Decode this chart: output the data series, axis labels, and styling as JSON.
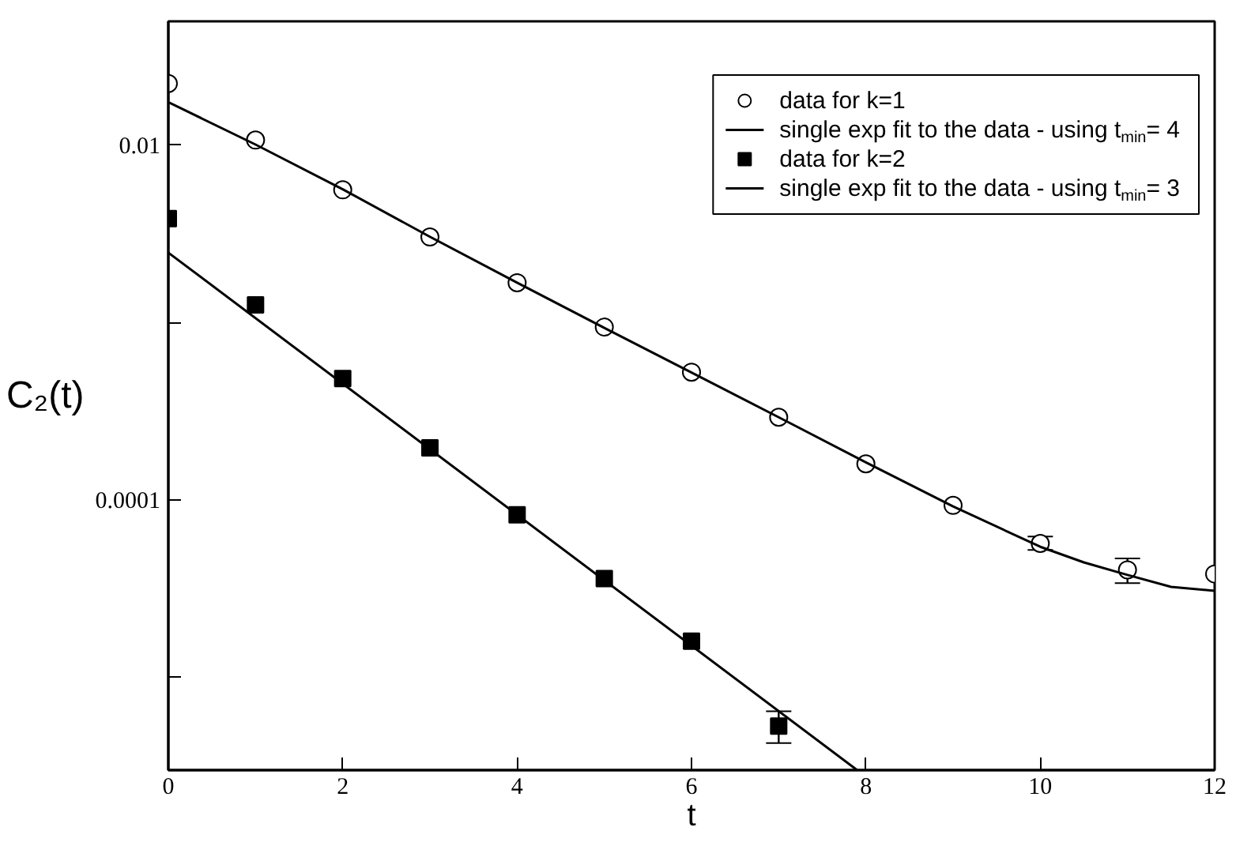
{
  "chart_data": {
    "type": "scatter",
    "xlabel": "t",
    "ylabel": "C₂(t)",
    "log": "y",
    "xlim": [
      0,
      12
    ],
    "xticks": [
      0,
      2,
      4,
      6,
      8,
      10,
      12
    ],
    "ylim": [
      3e-06,
      0.05
    ],
    "yticks": [
      {
        "value": 1e-05,
        "label": null
      },
      {
        "value": 0.0001,
        "label": "0.0001"
      },
      {
        "value": 0.001,
        "label": null
      },
      {
        "value": 0.01,
        "label": "0.01"
      }
    ],
    "grid": false,
    "legend": "top right",
    "series": [
      {
        "name": "data for k=1",
        "type": "scatter",
        "marker": "circle",
        "color": "#000000",
        "x": [
          0,
          1,
          2,
          3,
          4,
          5,
          6,
          7,
          8,
          9,
          10,
          11,
          12
        ],
        "values": [
          0.0223,
          0.0107,
          0.00561,
          0.00304,
          0.00168,
          0.000944,
          0.000526,
          0.000293,
          0.00016,
          9.33e-05,
          5.69e-05,
          4.04e-05,
          3.83e-05
        ],
        "errors": [
          null,
          null,
          null,
          null,
          null,
          null,
          null,
          null,
          null,
          null,
          [
            5.23e-05,
            6.23e-05
          ],
          [
            3.4e-05,
            4.69e-05
          ],
          null
        ]
      },
      {
        "name": "single exp fit to the data - using t$_{min}$= 4",
        "type": "line",
        "marker": "none",
        "color": "#000000",
        "x": [
          0,
          1,
          2,
          3,
          4,
          5,
          6,
          7,
          8,
          9,
          10,
          10.5,
          11,
          11.5,
          12
        ],
        "values": [
          0.0175,
          0.0101,
          0.00565,
          0.00305,
          0.00168,
          0.000935,
          0.000523,
          0.000293,
          0.000163,
          9.2e-05,
          5.45e-05,
          4.45e-05,
          3.78e-05,
          3.24e-05,
          3.08e-05
        ]
      },
      {
        "name": "data for k=2",
        "type": "scatter",
        "marker": "square",
        "color": "#000000",
        "x": [
          0,
          1,
          2,
          3,
          4,
          5,
          6,
          7
        ],
        "values": [
          0.00386,
          0.00126,
          0.000484,
          0.000197,
          8.26e-05,
          3.61e-05,
          1.6e-05,
          5.32e-06
        ],
        "errors": [
          null,
          null,
          null,
          null,
          null,
          null,
          null,
          [
            4.26e-06,
            6.44e-06
          ]
        ]
      },
      {
        "name": "single exp fit to the data - using t$_{min}$= 3",
        "type": "line",
        "marker": "none",
        "color": "#000000",
        "x": [
          0,
          7.9
        ],
        "values": [
          0.00248,
          3e-06
        ]
      }
    ]
  }
}
